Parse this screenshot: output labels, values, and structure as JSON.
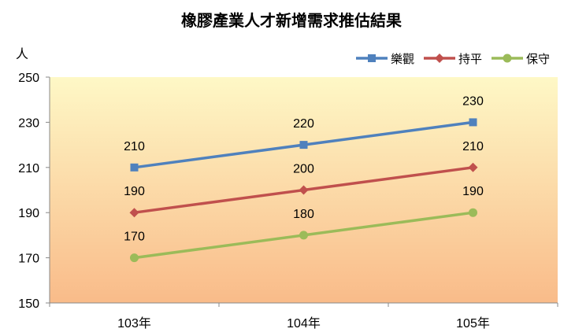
{
  "chart_data": {
    "type": "line",
    "title": "橡膠產業人才新增需求推估結果",
    "ylabel": "人",
    "xlabel": "",
    "categories": [
      "103年",
      "104年",
      "105年"
    ],
    "ylim": [
      150,
      250
    ],
    "yticks": [
      150,
      170,
      190,
      210,
      230,
      250
    ],
    "legend_position": "top-right",
    "grid": false,
    "background_gradient": [
      "#FEF8C6",
      "#F9BB89"
    ],
    "series": [
      {
        "name": "樂觀",
        "values": [
          210,
          220,
          230
        ],
        "color": "#4F81BD",
        "marker": "square"
      },
      {
        "name": "持平",
        "values": [
          190,
          200,
          210
        ],
        "color": "#C0504D",
        "marker": "diamond"
      },
      {
        "name": "保守",
        "values": [
          170,
          180,
          190
        ],
        "color": "#9BBB59",
        "marker": "circle"
      }
    ]
  }
}
